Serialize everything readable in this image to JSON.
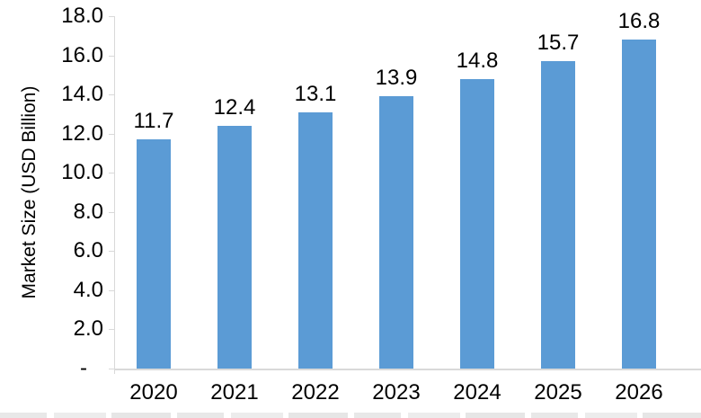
{
  "chart_data": {
    "type": "bar",
    "title": "",
    "ylabel": "Market Size (USD Billion)",
    "xlabel": "",
    "categories": [
      "2020",
      "2021",
      "2022",
      "2023",
      "2024",
      "2025",
      "2026"
    ],
    "values": [
      11.7,
      12.4,
      13.1,
      13.9,
      14.8,
      15.7,
      16.8
    ],
    "bar_labels": [
      "11.7",
      "12.4",
      "13.1",
      "13.9",
      "14.8",
      "15.7",
      "16.8"
    ],
    "ylim": [
      0,
      18
    ],
    "ytick_step": 2,
    "yticks": [
      {
        "value": 18,
        "label": "18.0"
      },
      {
        "value": 16,
        "label": "16.0"
      },
      {
        "value": 14,
        "label": "14.0"
      },
      {
        "value": 12,
        "label": "12.0"
      },
      {
        "value": 10,
        "label": "10.0"
      },
      {
        "value": 8,
        "label": "8.0"
      },
      {
        "value": 6,
        "label": "6.0"
      },
      {
        "value": 4,
        "label": "4.0"
      },
      {
        "value": 2,
        "label": "2.0"
      },
      {
        "value": 0,
        "label": "-"
      }
    ],
    "grid": false,
    "legend": false,
    "colors": {
      "bar": "#5B9BD5",
      "axis": "#D9D9D9",
      "text": "#000000"
    }
  }
}
